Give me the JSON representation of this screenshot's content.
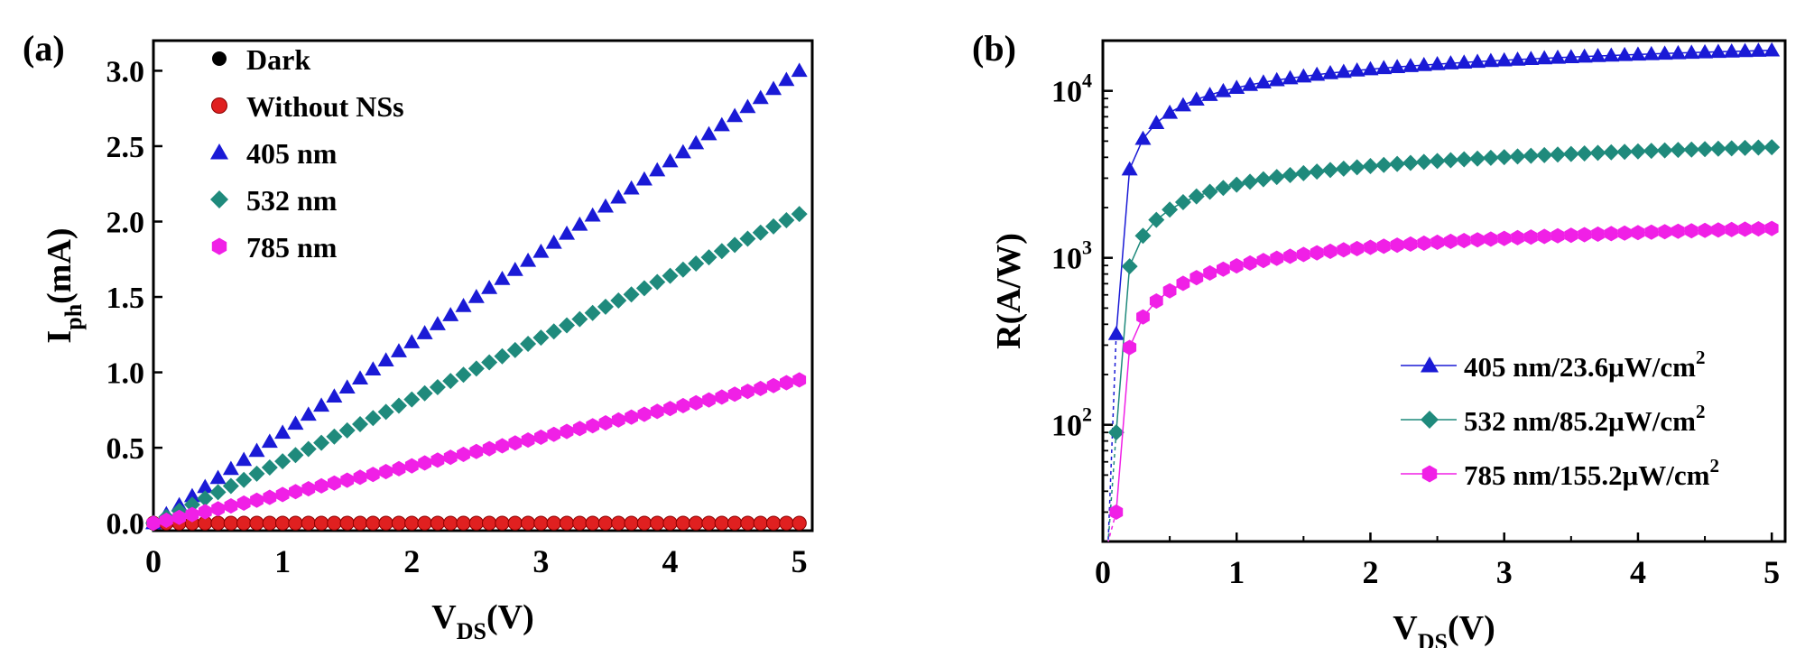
{
  "colors": {
    "dark": "#000000",
    "without_nss": "#e02020",
    "nm405": "#1a1ad6",
    "nm532": "#1f8a7c",
    "nm785": "#f020e6"
  },
  "chart_data": [
    {
      "panel_label": "(a)",
      "type": "scatter",
      "xlabel_main": "V",
      "xlabel_sub": "DS",
      "xlabel_tail": "(V)",
      "ylabel_main": "I",
      "ylabel_sub": "ph",
      "ylabel_tail": "(mA)",
      "xlim": [
        0,
        5.1
      ],
      "ylim": [
        -0.05,
        3.2
      ],
      "xticks": [
        0,
        1,
        2,
        3,
        4,
        5
      ],
      "xtick_labels": [
        "0",
        "1",
        "2",
        "3",
        "4",
        "5"
      ],
      "yticks": [
        0,
        0.5,
        1.0,
        1.5,
        2.0,
        2.5,
        3.0
      ],
      "ytick_labels": [
        "0.0",
        "0.5",
        "1.0",
        "1.5",
        "2.0",
        "2.5",
        "3.0"
      ],
      "legend_position": "top-left",
      "series": [
        {
          "name": "Dark",
          "marker": "circle",
          "color_key": "dark",
          "model": "linear",
          "points": 51,
          "end_value": 0.0
        },
        {
          "name": "Without NSs",
          "marker": "sphere",
          "color_key": "without_nss",
          "model": "linear",
          "points": 51,
          "end_value": 0.0
        },
        {
          "name": "405 nm",
          "marker": "triangle",
          "color_key": "nm405",
          "model": "linear",
          "points": 51,
          "end_value": 3.0
        },
        {
          "name": "532 nm",
          "marker": "diamond",
          "color_key": "nm532",
          "model": "linear",
          "points": 51,
          "end_value": 2.05
        },
        {
          "name": "785 nm",
          "marker": "hexagon",
          "color_key": "nm785",
          "model": "linear",
          "points": 51,
          "end_value": 0.95
        }
      ]
    },
    {
      "panel_label": "(b)",
      "type": "line",
      "yscale": "log",
      "xlabel_main": "V",
      "xlabel_sub": "DS",
      "xlabel_tail": "(V)",
      "ylabel": "R(A/W)",
      "xlim": [
        0,
        5.1
      ],
      "ylim": [
        20,
        20000
      ],
      "xticks": [
        0,
        1,
        2,
        3,
        4,
        5
      ],
      "xtick_labels": [
        "0",
        "1",
        "2",
        "3",
        "4",
        "5"
      ],
      "yticks": [
        100,
        1000,
        10000
      ],
      "ytick_base": "10",
      "ytick_exponents": [
        "2",
        "3",
        "4"
      ],
      "legend_position": "bottom-right",
      "series": [
        {
          "name": "405 nm/23.6μW/cm",
          "sup": "2",
          "marker": "triangle",
          "color_key": "nm405",
          "model": "log",
          "points": 51,
          "x_start": 0.1,
          "value_at_start": 350,
          "end_value": 17500
        },
        {
          "name": "532 nm/85.2μW/cm",
          "sup": "2",
          "marker": "diamond",
          "color_key": "nm532",
          "model": "log",
          "points": 51,
          "x_start": 0.1,
          "value_at_start": 90,
          "end_value": 4600
        },
        {
          "name": "785 nm/155.2μW/cm",
          "sup": "2",
          "marker": "hexagon",
          "color_key": "nm785",
          "model": "log",
          "points": 51,
          "x_start": 0.1,
          "value_at_start": 30,
          "end_value": 1500
        }
      ]
    }
  ]
}
